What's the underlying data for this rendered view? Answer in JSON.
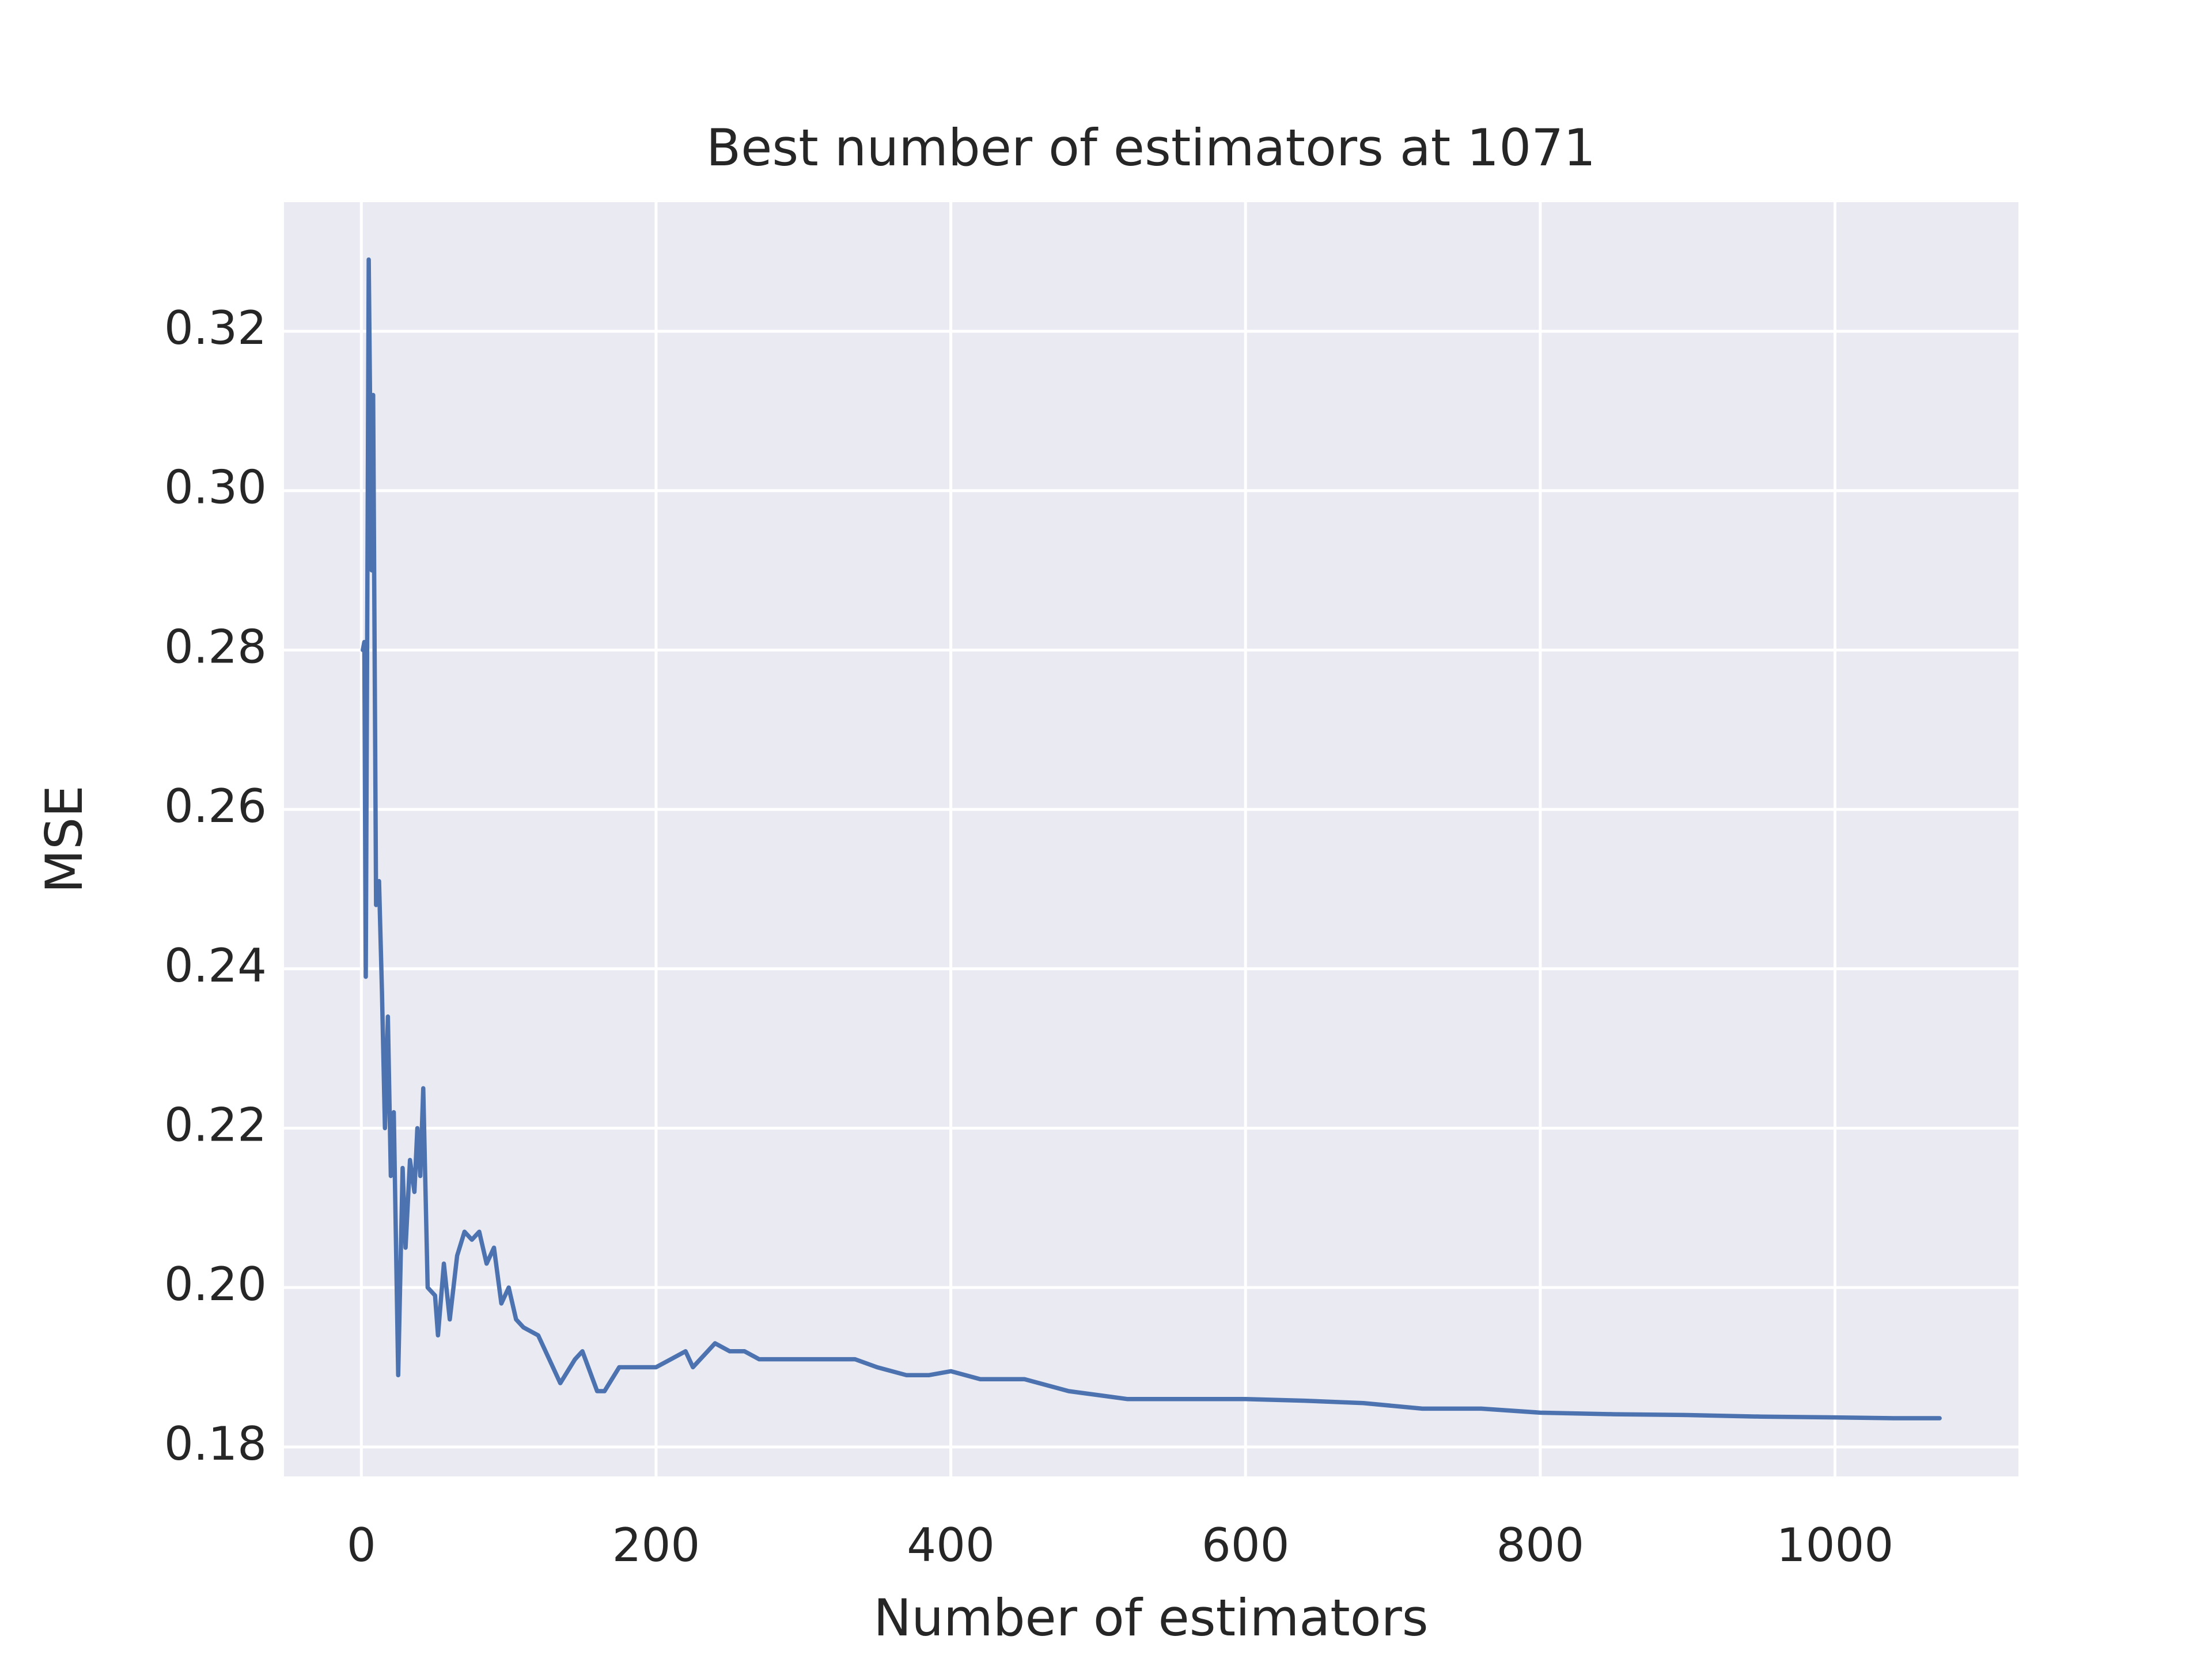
{
  "chart_data": {
    "type": "line",
    "title": "Best number of estimators at 1071",
    "x_label": "Number of estimators",
    "y_label": "MSE",
    "x": [
      1,
      2,
      3,
      5,
      7,
      8,
      10,
      12,
      14,
      16,
      18,
      20,
      22,
      25,
      28,
      30,
      33,
      36,
      38,
      40,
      42,
      45,
      50,
      52,
      56,
      60,
      65,
      70,
      75,
      80,
      85,
      90,
      95,
      100,
      105,
      110,
      120,
      130,
      135,
      145,
      150,
      160,
      165,
      175,
      185,
      200,
      210,
      220,
      225,
      235,
      240,
      250,
      260,
      270,
      290,
      300,
      320,
      335,
      350,
      370,
      385,
      400,
      420,
      450,
      480,
      520,
      560,
      600,
      640,
      680,
      720,
      760,
      800,
      850,
      900,
      950,
      1000,
      1040,
      1071
    ],
    "series": [
      {
        "name": "MSE",
        "color": "#4c72b0",
        "values": [
          0.28,
          0.281,
          0.239,
          0.329,
          0.29,
          0.312,
          0.248,
          0.251,
          0.237,
          0.22,
          0.234,
          0.214,
          0.222,
          0.189,
          0.215,
          0.205,
          0.216,
          0.212,
          0.22,
          0.214,
          0.225,
          0.2,
          0.199,
          0.194,
          0.203,
          0.196,
          0.204,
          0.207,
          0.206,
          0.207,
          0.203,
          0.205,
          0.198,
          0.2,
          0.196,
          0.195,
          0.194,
          0.19,
          0.188,
          0.191,
          0.192,
          0.187,
          0.187,
          0.19,
          0.19,
          0.19,
          0.191,
          0.192,
          0.19,
          0.192,
          0.193,
          0.192,
          0.192,
          0.191,
          0.191,
          0.191,
          0.191,
          0.191,
          0.19,
          0.189,
          0.189,
          0.1895,
          0.1885,
          0.1885,
          0.187,
          0.186,
          0.186,
          0.186,
          0.1858,
          0.1855,
          0.1848,
          0.1848,
          0.1843,
          0.1841,
          0.184,
          0.1838,
          0.1837,
          0.1836,
          0.1836
        ]
      }
    ],
    "xlim": [
      -52.5,
      1124.5
    ],
    "ylim": [
      0.1763,
      0.3362
    ],
    "xticks": [
      0,
      200,
      400,
      600,
      800,
      1000
    ],
    "yticks": [
      0.18,
      {
        "value": 0.2,
        "label": "0.20"
      },
      0.22,
      0.24,
      0.26,
      0.28,
      {
        "value": 0.3,
        "label": "0.30"
      },
      0.32
    ],
    "grid": true,
    "background": "#eaeaf2"
  }
}
